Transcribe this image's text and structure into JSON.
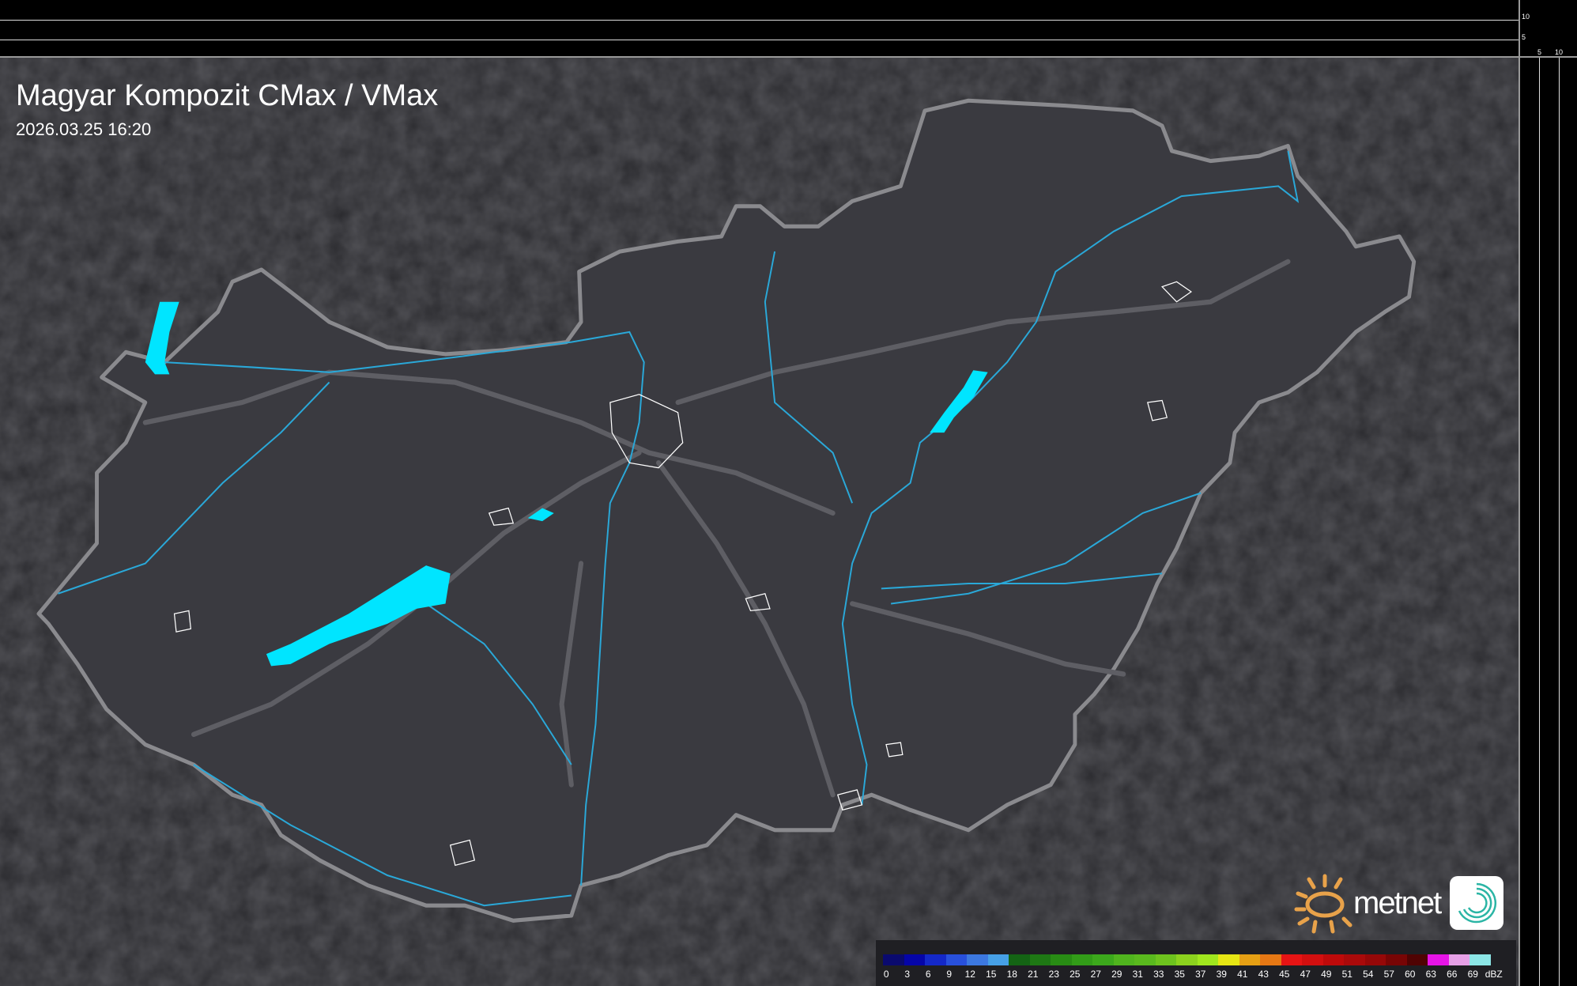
{
  "title": "Magyar Kompozit CMax / VMax",
  "timestamp": "2026.03.25 16:20",
  "top_panel": {
    "ticks": [
      "10",
      "5"
    ]
  },
  "right_panel": {
    "ticks": [
      "5",
      "10"
    ]
  },
  "colors": {
    "background": "#2b2b2f",
    "country": "#3a3a40",
    "border": "#8a8a8e",
    "rivers": "#2aa8d8",
    "lakes": "#00e5ff",
    "roads": "#5a5a60"
  },
  "legend": {
    "unit": "dBZ",
    "labels": [
      "0",
      "3",
      "6",
      "9",
      "12",
      "15",
      "18",
      "21",
      "23",
      "25",
      "27",
      "29",
      "31",
      "33",
      "35",
      "37",
      "39",
      "41",
      "43",
      "45",
      "47",
      "49",
      "51",
      "54",
      "57",
      "60",
      "63",
      "66",
      "69"
    ],
    "colors": [
      "#0a0a6e",
      "#0505a8",
      "#1428c8",
      "#2850dc",
      "#3c78e0",
      "#46a0e6",
      "#146414",
      "#1e7814",
      "#288c14",
      "#329c18",
      "#3ca81c",
      "#50b41e",
      "#5ab91e",
      "#6ec31e",
      "#8cd21e",
      "#a0e61e",
      "#e6e614",
      "#e6a014",
      "#e67814",
      "#e61414",
      "#d20f0f",
      "#be0a0a",
      "#aa0a0a",
      "#960808",
      "#780505",
      "#500303",
      "#e614e6",
      "#e6a0e6",
      "#8ce6e6"
    ]
  },
  "logo": {
    "brand": "metnet"
  }
}
